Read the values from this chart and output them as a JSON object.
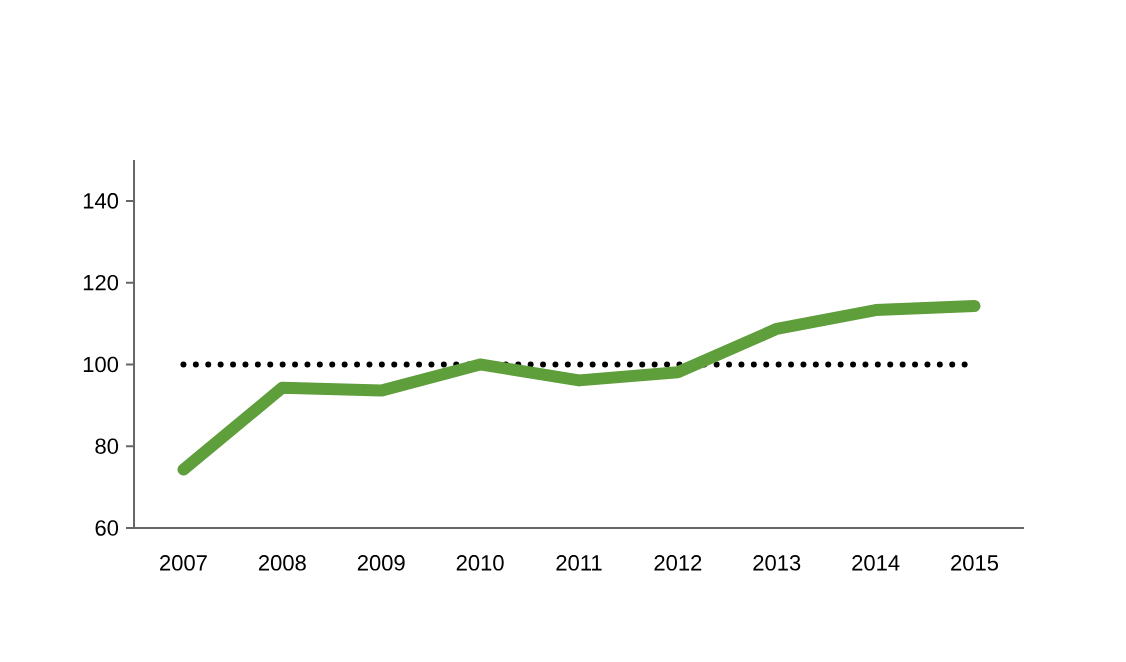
{
  "chart_data": {
    "type": "line",
    "categories": [
      "2007",
      "2008",
      "2009",
      "2010",
      "2011",
      "2012",
      "2013",
      "2014",
      "2015"
    ],
    "series": [
      {
        "color": "#5e9e3b",
        "values": [
          74.3,
          94.3,
          93.6,
          100,
          96.1,
          98.1,
          108.7,
          113.3,
          114.3
        ]
      }
    ],
    "ylim": [
      60,
      150
    ],
    "yticks": [
      60,
      80,
      100,
      120,
      140
    ],
    "grid": false,
    "line_style": "solid",
    "marker": "none",
    "ref_lines": [
      {
        "axis": "y",
        "value": 100,
        "color": "#000000",
        "line_style": "dotted"
      }
    ]
  }
}
